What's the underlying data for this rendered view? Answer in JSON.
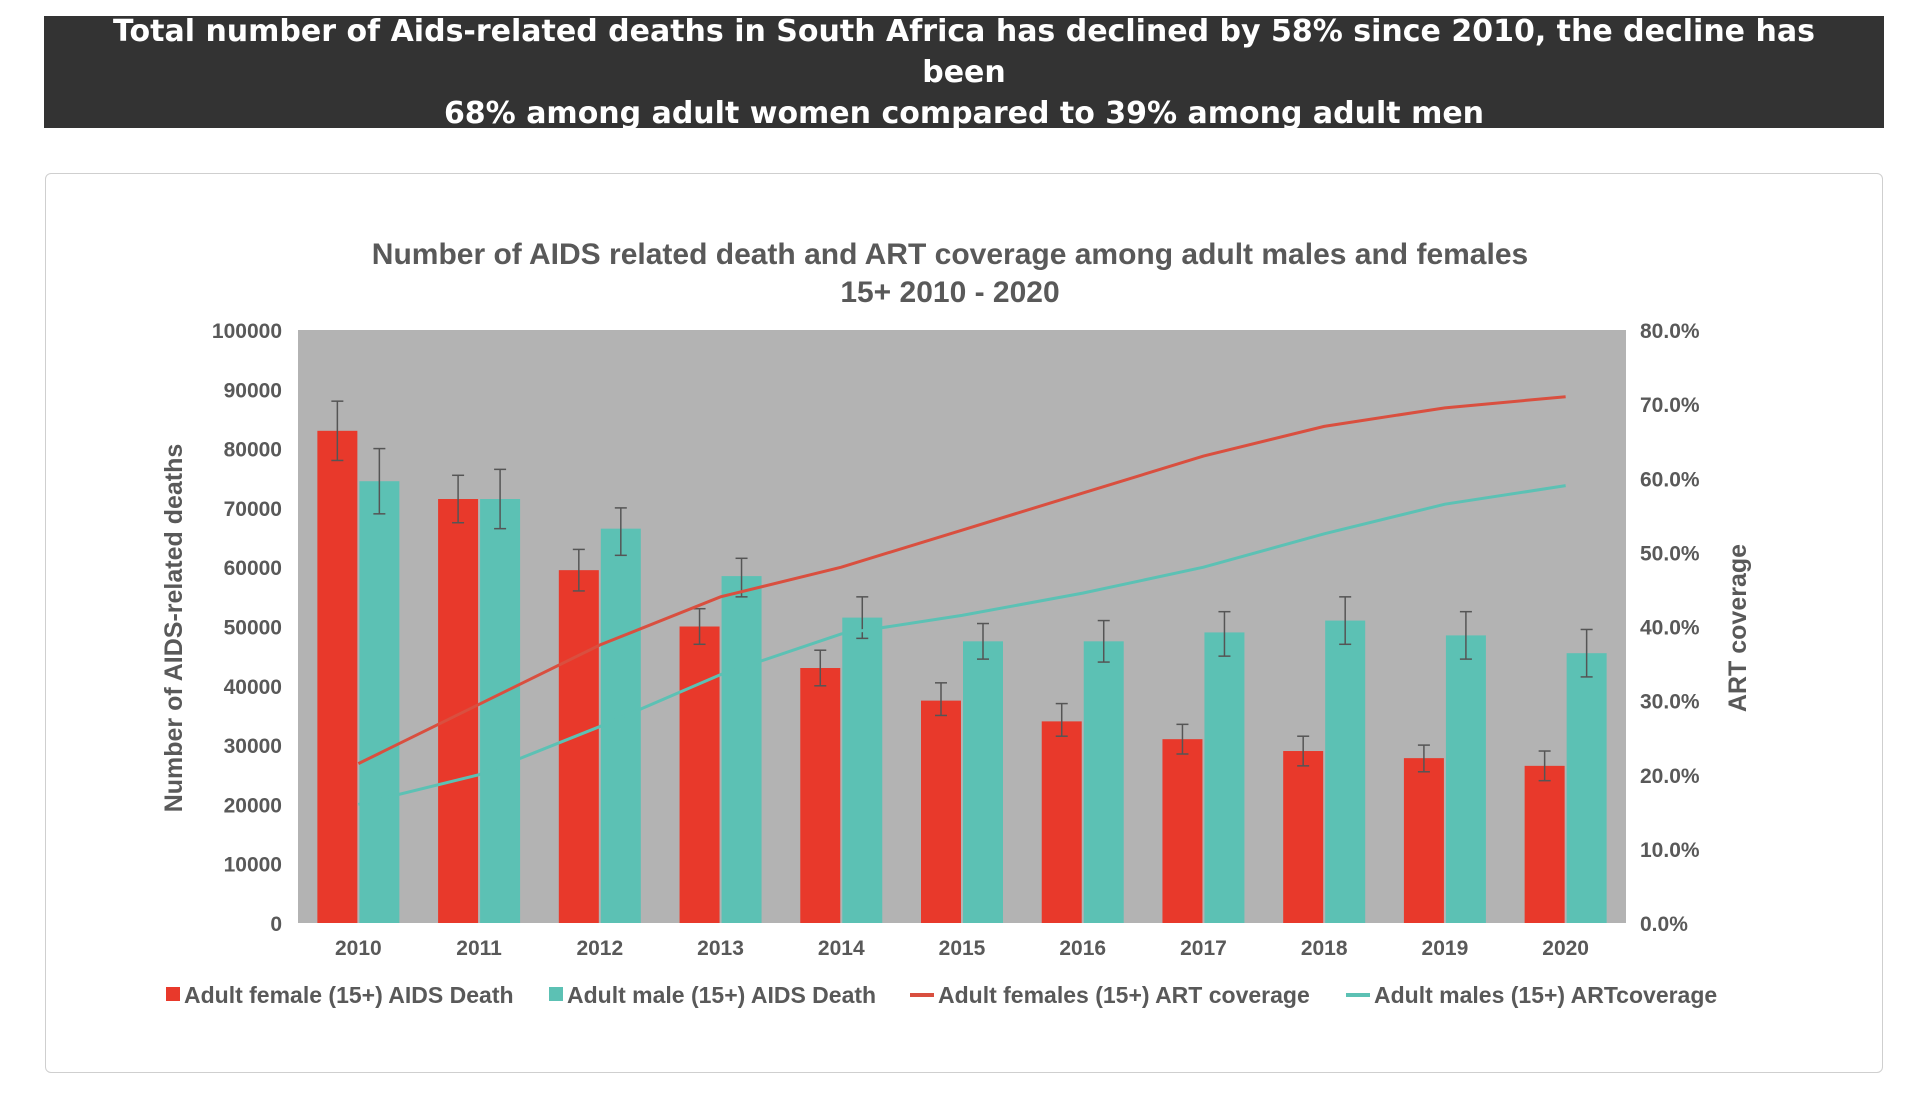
{
  "banner": {
    "line1": "Total number of Aids-related deaths in South Africa has declined by 58% since 2010, the decline has been",
    "line2": "68% among adult women compared to 39% among adult men"
  },
  "chart_data": {
    "type": "bar",
    "title": [
      "Number of AIDS related death and ART coverage among adult males and females",
      "15+ 2010 - 2020"
    ],
    "categories": [
      "2010",
      "2011",
      "2012",
      "2013",
      "2014",
      "2015",
      "2016",
      "2017",
      "2018",
      "2019",
      "2020"
    ],
    "ylabel": "Number of AIDS-related deaths",
    "y2label": "ART coverage",
    "ylim": [
      0,
      100000
    ],
    "y2lim": [
      0,
      0.8
    ],
    "yticks": [
      "0",
      "10000",
      "20000",
      "30000",
      "40000",
      "50000",
      "60000",
      "70000",
      "80000",
      "90000",
      "100000"
    ],
    "y2ticks": [
      "0.0%",
      "10.0%",
      "20.0%",
      "30.0%",
      "40.0%",
      "50.0%",
      "60.0%",
      "70.0%",
      "80.0%"
    ],
    "series": [
      {
        "name": "Adult female (15+) AIDS Death",
        "kind": "bar",
        "axis": "left",
        "color": "#e8392b",
        "values": [
          83000,
          71500,
          59500,
          50000,
          43000,
          37500,
          34000,
          31000,
          29000,
          27800,
          26500
        ],
        "error_low": [
          78000,
          67500,
          56000,
          47000,
          40000,
          35000,
          31500,
          28500,
          26500,
          25500,
          24000
        ],
        "error_high": [
          88000,
          75500,
          63000,
          53000,
          46000,
          40500,
          37000,
          33500,
          31500,
          30000,
          29000
        ]
      },
      {
        "name": "Adult male (15+) AIDS Death",
        "kind": "bar",
        "axis": "left",
        "color": "#5cc1b4",
        "values": [
          74500,
          71500,
          66500,
          58500,
          51500,
          47500,
          47500,
          49000,
          51000,
          48500,
          45500
        ],
        "error_low": [
          69000,
          66500,
          62000,
          55000,
          48000,
          44500,
          44000,
          45000,
          47000,
          44500,
          41500
        ],
        "error_high": [
          80000,
          76500,
          70000,
          61500,
          55000,
          50500,
          51000,
          52500,
          55000,
          52500,
          49500
        ]
      },
      {
        "name": "Adult females (15+) ART coverage",
        "kind": "line",
        "axis": "right",
        "color": "#d94f3f",
        "values": [
          0.215,
          0.295,
          0.375,
          0.44,
          0.48,
          0.53,
          0.58,
          0.63,
          0.67,
          0.695,
          0.71
        ]
      },
      {
        "name": "Adult males (15+) ARTcoverage",
        "kind": "line",
        "axis": "right",
        "color": "#5cc1b4",
        "values": [
          0.16,
          0.2,
          0.265,
          0.335,
          0.39,
          0.415,
          0.445,
          0.48,
          0.525,
          0.565,
          0.59
        ]
      }
    ],
    "legend_position": "bottom"
  }
}
